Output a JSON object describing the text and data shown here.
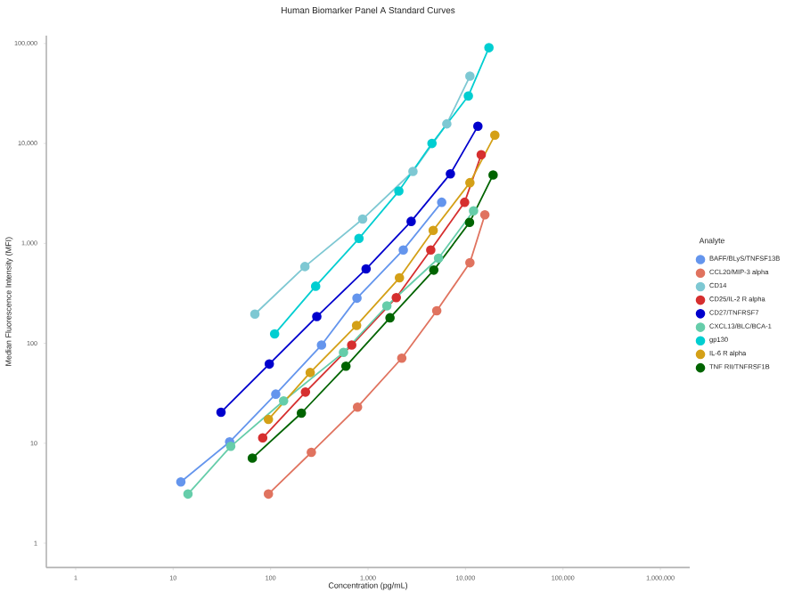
{
  "chart_data": {
    "type": "line",
    "title": "Human Biomarker Panel A Standard Curves",
    "xlabel": "Concentration (pg/mL)",
    "ylabel": "Median Fluorescence Intensity (MFI)",
    "legend_title": "Analyte",
    "log": "xy",
    "grid": false,
    "legend": "right",
    "marker": "circle",
    "line_style": "solid",
    "xlim": [
      0.5,
      2000000
    ],
    "ylim": [
      0.57,
      120000
    ],
    "xticks": [
      1,
      10,
      100,
      {
        "value": 1000,
        "label": "1,000"
      },
      {
        "value": 10000,
        "label": "10,000"
      },
      {
        "value": 100000,
        "label": "100,000"
      },
      {
        "value": 1000000,
        "label": "1,000,000"
      }
    ],
    "yticks": [
      1,
      10,
      100,
      {
        "value": 1000,
        "label": "1,000"
      },
      {
        "value": 10000,
        "label": "10,000"
      },
      {
        "value": 100000,
        "label": "100,000"
      }
    ],
    "series": [
      {
        "name": "BAFF/BLyS/TNFSF13B",
        "color": "#6495ed",
        "x": [
          12,
          38,
          113,
          333,
          770,
          2300,
          5700
        ],
        "values": [
          4.1,
          10.3,
          31,
          96,
          283,
          860,
          2580
        ]
      },
      {
        "name": "CCL20/MIP-3 alpha",
        "color": "#e0735f",
        "x": [
          95,
          262,
          780,
          2220,
          5070,
          11100,
          15800
        ],
        "values": [
          3.1,
          8.1,
          23,
          71,
          212,
          640,
          1930
        ]
      },
      {
        "name": "CD14",
        "color": "#7ec8d3",
        "x": [
          69,
          225,
          880,
          2890,
          6430,
          11100
        ],
        "values": [
          196,
          586,
          1750,
          5250,
          15700,
          47100
        ]
      },
      {
        "name": "CD25/IL-2 R alpha",
        "color": "#d62f2f",
        "x": [
          83,
          228,
          680,
          1950,
          4400,
          9800,
          14500
        ],
        "values": [
          11.3,
          32.5,
          96,
          287,
          860,
          2580,
          7710
        ]
      },
      {
        "name": "CD27/TNFRSF7",
        "color": "#0000cd",
        "x": [
          31,
          97,
          298,
          955,
          2770,
          7000,
          13400
        ],
        "values": [
          20.4,
          62,
          185,
          555,
          1660,
          4970,
          14900
        ]
      },
      {
        "name": "CXCL13/BLC/BCA-1",
        "color": "#66cdaa",
        "x": [
          14.2,
          39,
          136,
          560,
          1560,
          5290,
          12100
        ],
        "values": [
          3.1,
          9.3,
          26.5,
          81,
          237,
          710,
          2120
        ]
      },
      {
        "name": "gp130",
        "color": "#00ced1",
        "x": [
          110,
          290,
          807,
          2070,
          4530,
          10700,
          17400
        ],
        "values": [
          124,
          373,
          1120,
          3340,
          10000,
          29900,
          90800
        ]
      },
      {
        "name": "IL-6 R alpha",
        "color": "#d4a017",
        "x": [
          95,
          255,
          763,
          2100,
          4660,
          11100,
          20000
        ],
        "values": [
          17.3,
          51,
          151,
          452,
          1350,
          4050,
          12100
        ]
      },
      {
        "name": "TNF RII/TNFRSF1B",
        "color": "#006400",
        "x": [
          65,
          207,
          593,
          1680,
          4730,
          11000,
          19200
        ],
        "values": [
          7.1,
          20,
          59,
          180,
          540,
          1620,
          4840
        ]
      }
    ]
  }
}
